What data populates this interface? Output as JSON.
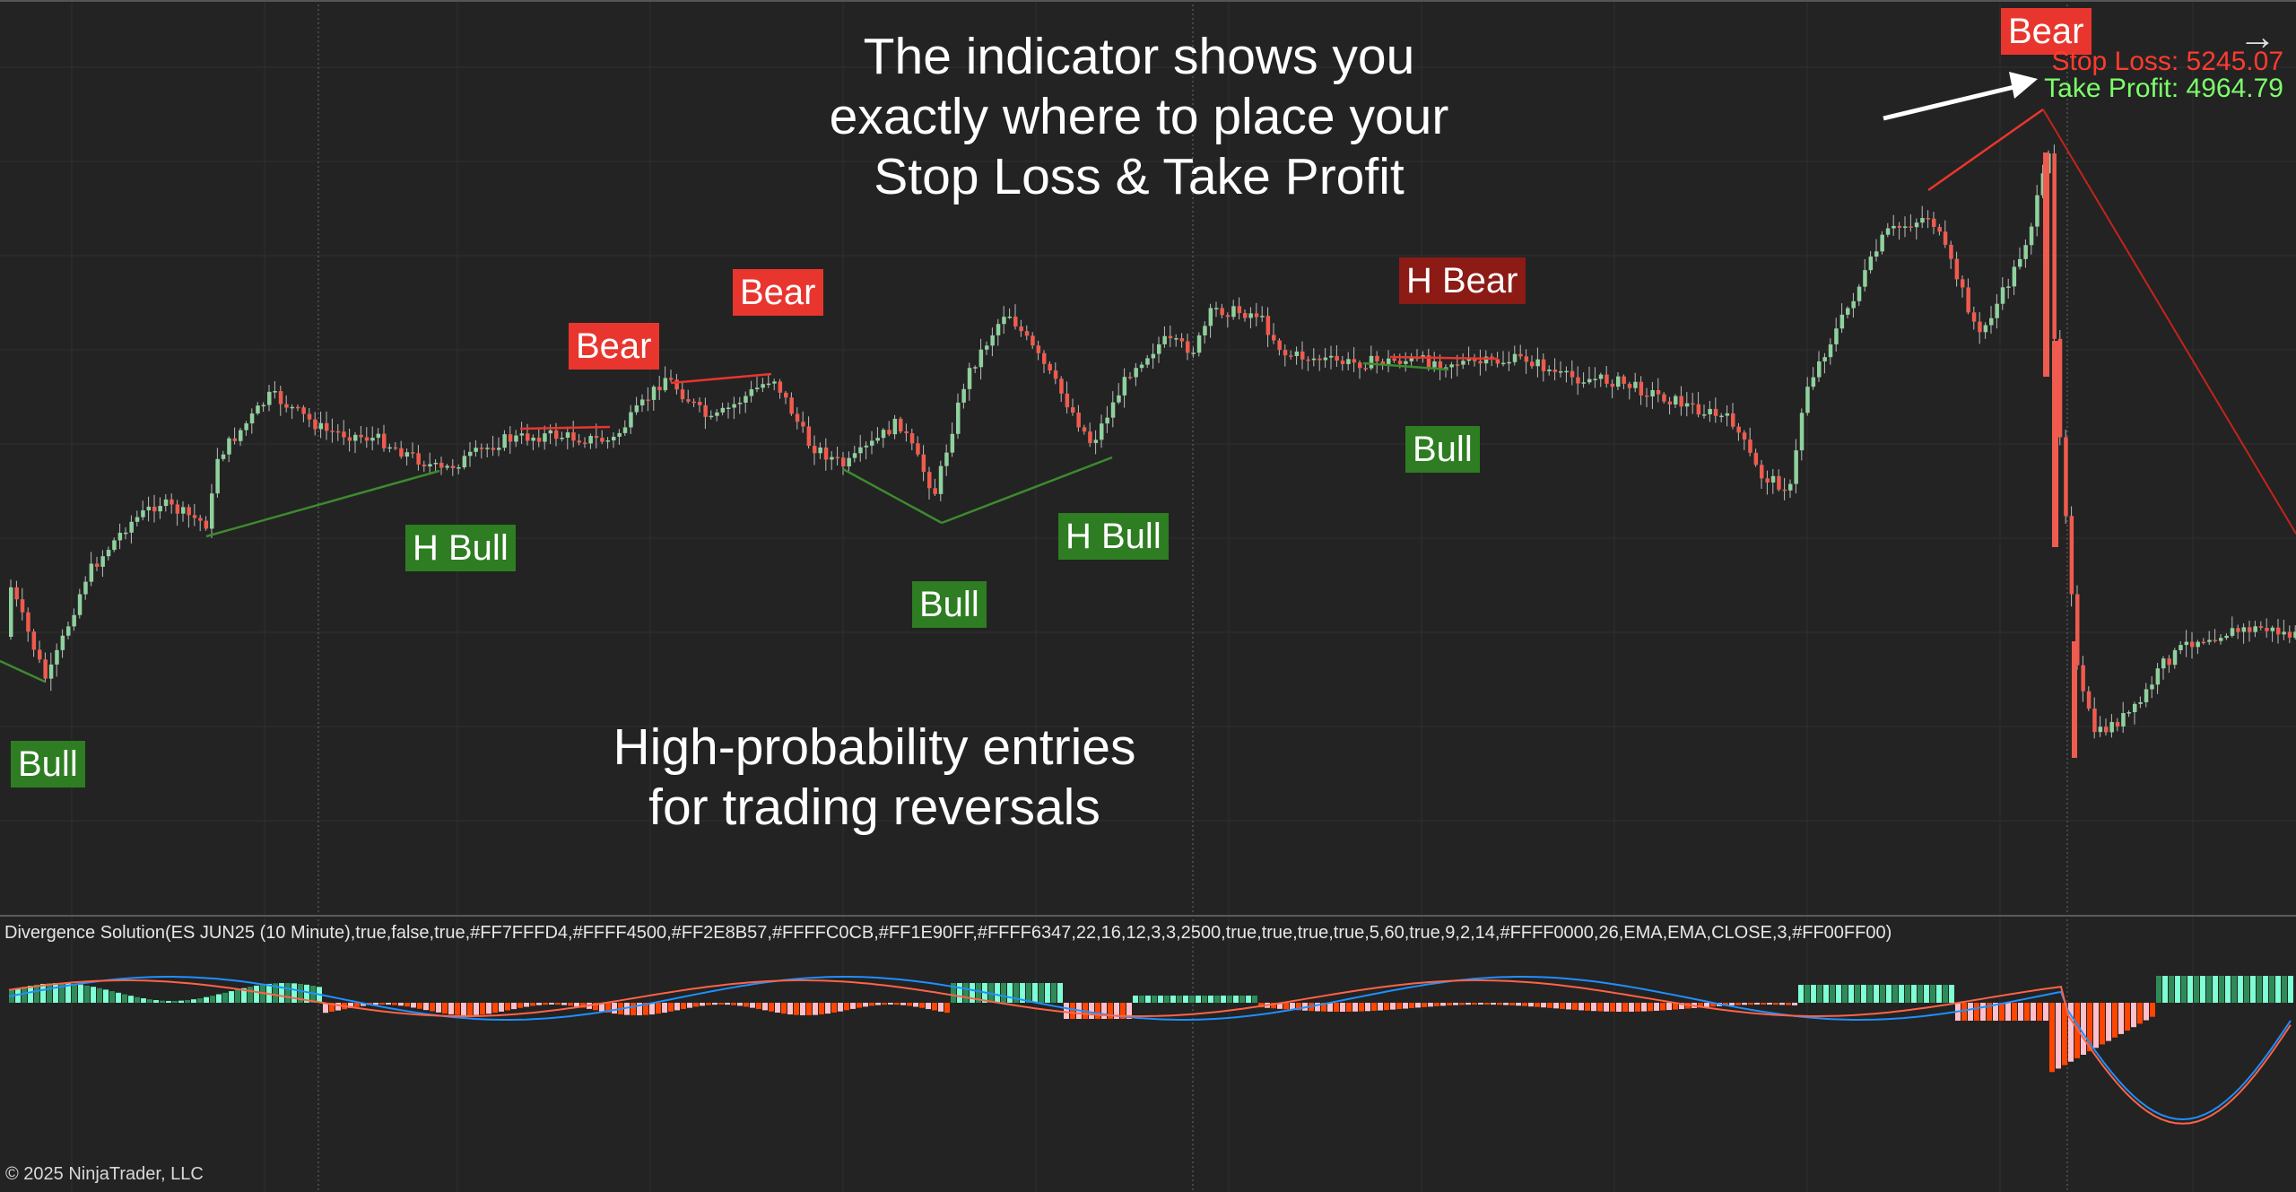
{
  "chart": {
    "params_text": "Divergence Solution(ES JUN25 (10 Minute),true,false,true,#FF7FFFD4,#FFFF4500,#FF2E8B57,#FFFFC0CB,#FF1E90FF,#FFFF6347,22,16,12,3,3,2500,true,true,true,true,5,60,true,9,2,14,#FFFF0000,26,EMA,EMA,CLOSE,3,#FF00FF00)",
    "copyright": "© 2025 NinjaTrader, LLC",
    "nav_arrow": "→",
    "stop_loss": "Stop Loss: 5245.07",
    "take_profit": "Take Profit: 4964.79",
    "headline_lines": [
      "The indicator shows you",
      "exactly where to place your",
      "Stop Loss & Take Profit"
    ],
    "subline_lines": [
      "High-probability entries",
      "for trading reversals"
    ],
    "signals": [
      {
        "text": "Bull",
        "kind": "bull"
      },
      {
        "text": "H Bull",
        "kind": "bull"
      },
      {
        "text": "Bear",
        "kind": "bear"
      },
      {
        "text": "Bear",
        "kind": "bear"
      },
      {
        "text": "Bull",
        "kind": "bull"
      },
      {
        "text": "H Bull",
        "kind": "bull"
      },
      {
        "text": "H Bear",
        "kind": "hbear"
      },
      {
        "text": "Bull",
        "kind": "bull"
      },
      {
        "text": "Bear",
        "kind": "bear"
      }
    ],
    "colors": {
      "background": "#232323",
      "grid": "#2f2f2f",
      "up_candle": "#8fd19e",
      "down_candle": "#ef5b4e",
      "wick": "#bdbdbd",
      "bull_line": "#3d8a2f",
      "bear_line": "#e8362e",
      "histogram_up_strong": "#7fffd4",
      "histogram_up_weak": "#2e8b57",
      "histogram_down_strong": "#ff4500",
      "histogram_down_weak": "#ffc0cb",
      "macd_line": "#1e90ff",
      "signal_line": "#ff6347"
    }
  }
}
